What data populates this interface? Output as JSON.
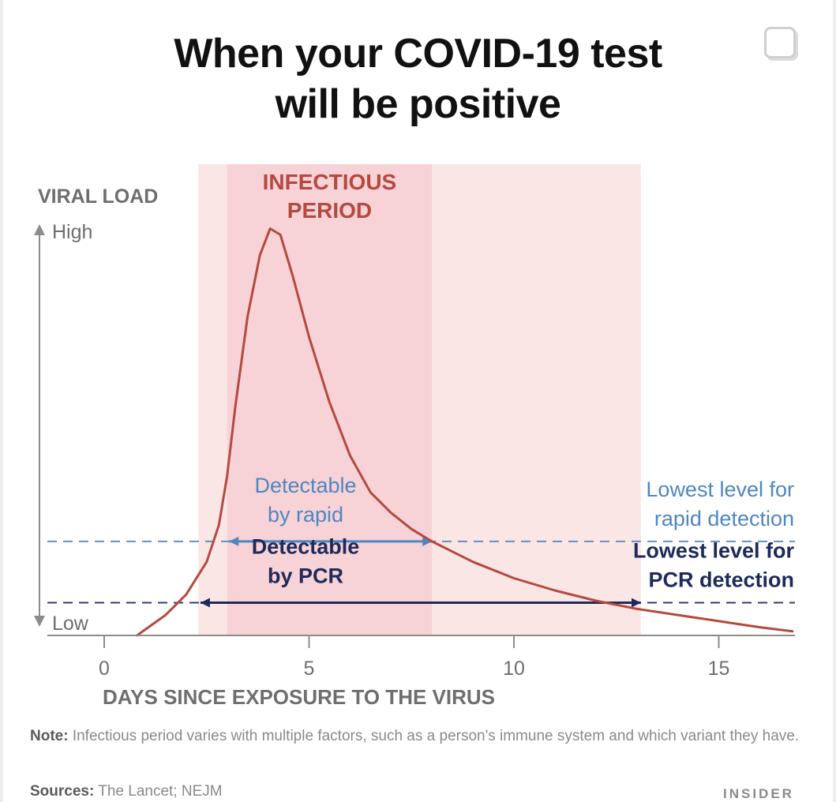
{
  "header": {
    "title_line1": "When your COVID-19 test",
    "title_line2": "will be positive"
  },
  "chart_data": {
    "type": "line",
    "title": "When your COVID-19 test will be positive",
    "xlabel": "DAYS SINCE EXPOSURE TO THE VIRUS",
    "ylabel": "VIRAL LOAD",
    "y_high_label": "High",
    "y_low_label": "Low",
    "xlim": [
      -0.5,
      16.8
    ],
    "ylim": [
      0,
      1
    ],
    "xticks": [
      0,
      5,
      10,
      15
    ],
    "xtick_labels": [
      "0",
      "5",
      "10",
      "15"
    ],
    "grid": false,
    "series": [
      {
        "color": "#b5493f",
        "x": [
          0.8,
          1.5,
          2.0,
          2.5,
          2.8,
          3.0,
          3.2,
          3.5,
          3.8,
          4.05,
          4.3,
          4.6,
          5.0,
          5.5,
          6.0,
          6.5,
          7.0,
          7.5,
          8.0,
          9.0,
          10.0,
          11.0,
          12.0,
          13.0,
          14.0,
          15.0,
          16.0,
          16.8
        ],
        "y": [
          0.0,
          0.05,
          0.1,
          0.18,
          0.27,
          0.39,
          0.56,
          0.78,
          0.93,
          0.995,
          0.98,
          0.88,
          0.73,
          0.57,
          0.44,
          0.35,
          0.3,
          0.26,
          0.23,
          0.18,
          0.14,
          0.11,
          0.085,
          0.065,
          0.05,
          0.035,
          0.02,
          0.01
        ]
      }
    ],
    "shaded_regions": [
      {
        "label": "",
        "x_start": 2.3,
        "x_end": 13.1,
        "color": "#fbe6e6"
      },
      {
        "label": "INFECTIOUS PERIOD",
        "x_start": 3.0,
        "x_end": 8.0,
        "color": "#f7d2d6",
        "label_color": "#b5493f"
      }
    ],
    "thresholds": [
      {
        "name": "rapid",
        "y": 0.23,
        "x_start": 3.05,
        "x_end": 8.0,
        "color": "#4f86c2",
        "inner_label": [
          "Detectable",
          "by rapid"
        ],
        "right_label": [
          "Lowest level for",
          "rapid detection"
        ]
      },
      {
        "name": "pcr",
        "y": 0.08,
        "x_start": 2.35,
        "x_end": 13.1,
        "color": "#1e2a5a",
        "inner_label": [
          "Detectable",
          "by PCR"
        ],
        "right_label": [
          "Lowest level for",
          "PCR detection"
        ]
      }
    ]
  },
  "footer": {
    "note_label": "Note:",
    "note_text": " Infectious period varies with multiple factors, such as a person's immune system and which variant they have.",
    "sources_label": "Sources:",
    "sources_text": " The Lancet; NEJM",
    "brand": "INSIDER"
  },
  "colors": {
    "curve": "#b5493f",
    "rapid": "#4f86c2",
    "pcr": "#1e2a5a",
    "axis": "#8c8c8c",
    "infectious_fill": "#f7d2d6",
    "outer_fill": "#fbe6e6"
  }
}
